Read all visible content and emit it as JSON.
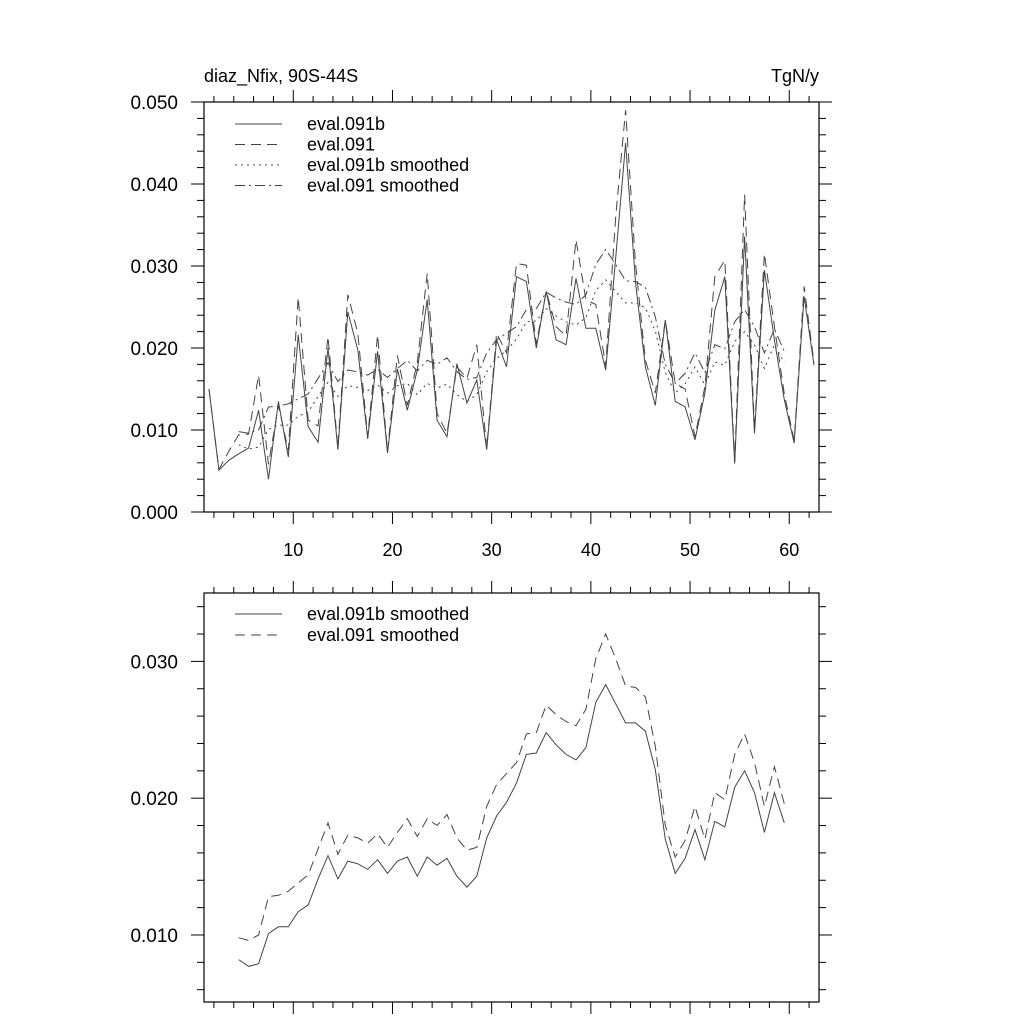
{
  "chart_data": [
    {
      "type": "line",
      "title_left": "diaz_Nfix, 90S-44S",
      "title_right": "TgN/y",
      "xlabel": "",
      "ylabel": "",
      "xlim": [
        1,
        63
      ],
      "ylim": [
        0.0,
        0.05
      ],
      "xticks": [
        10,
        20,
        30,
        40,
        50,
        60
      ],
      "xtick_labels": [
        "10",
        "20",
        "30",
        "40",
        "50",
        "60"
      ],
      "yticks": [
        0.0,
        0.01,
        0.02,
        0.03,
        0.04,
        0.05
      ],
      "ytick_labels": [
        "0.000",
        "0.010",
        "0.020",
        "0.030",
        "0.040",
        "0.050"
      ],
      "grid": false,
      "legend_position": "top-left",
      "series": [
        {
          "name": "eval.091b",
          "style": "solid",
          "x_start": 1.5,
          "values": [
            0.015,
            0.0051,
            0.0063,
            0.0071,
            0.0078,
            0.0124,
            0.004,
            0.0135,
            0.0067,
            0.0216,
            0.0104,
            0.0085,
            0.02,
            0.0076,
            0.0244,
            0.0198,
            0.0089,
            0.0196,
            0.0072,
            0.0174,
            0.0124,
            0.0173,
            0.0259,
            0.0112,
            0.0092,
            0.0181,
            0.0133,
            0.0161,
            0.0076,
            0.021,
            0.0177,
            0.0287,
            0.0281,
            0.02,
            0.0269,
            0.021,
            0.0204,
            0.0285,
            0.0224,
            0.0224,
            0.0173,
            0.031,
            0.045,
            0.028,
            0.0177,
            0.013,
            0.0234,
            0.0135,
            0.0128,
            0.0088,
            0.0145,
            0.0246,
            0.0287,
            0.0059,
            0.0336,
            0.0096,
            0.0295,
            0.021,
            0.0137,
            0.0084,
            0.0263,
            0.0179
          ]
        },
        {
          "name": "eval.091",
          "style": "dashed",
          "x_start": 1.5,
          "values": [
            0.015,
            0.0052,
            0.0074,
            0.0094,
            0.0095,
            0.0167,
            0.0058,
            0.013,
            0.0075,
            0.0262,
            0.0112,
            0.0105,
            0.0214,
            0.0078,
            0.0265,
            0.0218,
            0.0092,
            0.0216,
            0.0074,
            0.0191,
            0.013,
            0.0182,
            0.0291,
            0.012,
            0.0096,
            0.0177,
            0.0163,
            0.0204,
            0.0078,
            0.0218,
            0.0194,
            0.0303,
            0.0301,
            0.0205,
            0.0269,
            0.0226,
            0.0215,
            0.0332,
            0.0259,
            0.0253,
            0.0178,
            0.036,
            0.049,
            0.0303,
            0.0185,
            0.0145,
            0.0234,
            0.0157,
            0.015,
            0.0092,
            0.0153,
            0.0287,
            0.0307,
            0.0062,
            0.0387,
            0.01,
            0.0315,
            0.0226,
            0.0144,
            0.0087,
            0.0275,
            0.0182
          ]
        },
        {
          "name": "eval.091b smoothed",
          "style": "dotted",
          "x_start": 4.5,
          "values": [
            0.0082,
            0.0077,
            0.0079,
            0.0101,
            0.0106,
            0.0106,
            0.0117,
            0.0122,
            0.0141,
            0.0158,
            0.0141,
            0.0154,
            0.0152,
            0.0148,
            0.0155,
            0.0145,
            0.0154,
            0.0157,
            0.0143,
            0.0157,
            0.0151,
            0.0156,
            0.0143,
            0.0135,
            0.0143,
            0.0171,
            0.0187,
            0.0197,
            0.0211,
            0.0232,
            0.0233,
            0.0248,
            0.0239,
            0.0232,
            0.0228,
            0.0237,
            0.027,
            0.0283,
            0.0269,
            0.0255,
            0.0255,
            0.0249,
            0.0221,
            0.017,
            0.0145,
            0.0156,
            0.0177,
            0.0155,
            0.0183,
            0.0179,
            0.0208,
            0.022,
            0.0204,
            0.0175,
            0.0204,
            0.0182
          ]
        },
        {
          "name": "eval.091 smoothed",
          "style": "dashdot",
          "x_start": 4.5,
          "values": [
            0.0098,
            0.0096,
            0.01,
            0.0128,
            0.0129,
            0.0132,
            0.0138,
            0.0144,
            0.0163,
            0.0182,
            0.0159,
            0.0173,
            0.0171,
            0.0167,
            0.0174,
            0.0164,
            0.0175,
            0.0185,
            0.0172,
            0.0185,
            0.018,
            0.0188,
            0.0171,
            0.0162,
            0.0164,
            0.0194,
            0.021,
            0.0218,
            0.0226,
            0.0247,
            0.0248,
            0.0268,
            0.0261,
            0.0256,
            0.0253,
            0.0265,
            0.0302,
            0.032,
            0.0302,
            0.0282,
            0.0281,
            0.0274,
            0.0238,
            0.018,
            0.0157,
            0.0169,
            0.0194,
            0.017,
            0.0204,
            0.0199,
            0.0232,
            0.0247,
            0.0226,
            0.0194,
            0.0223,
            0.0196
          ]
        }
      ]
    },
    {
      "type": "line",
      "xlabel": "",
      "ylabel": "",
      "xlim": [
        1,
        63
      ],
      "ylim": [
        0.0051,
        0.035
      ],
      "xticks": [
        10,
        20,
        30,
        40,
        50,
        60
      ],
      "xtick_labels": [],
      "yticks": [
        0.01,
        0.02,
        0.03
      ],
      "ytick_labels": [
        "0.010",
        "0.020",
        "0.030"
      ],
      "grid": false,
      "legend_position": "top-left",
      "series": [
        {
          "name": "eval.091b smoothed",
          "style": "solid",
          "x_start": 4.5,
          "values": [
            0.0082,
            0.0077,
            0.0079,
            0.0101,
            0.0106,
            0.0106,
            0.0117,
            0.0122,
            0.0141,
            0.0158,
            0.0141,
            0.0154,
            0.0152,
            0.0148,
            0.0155,
            0.0145,
            0.0154,
            0.0157,
            0.0143,
            0.0157,
            0.0151,
            0.0156,
            0.0143,
            0.0135,
            0.0143,
            0.0171,
            0.0187,
            0.0197,
            0.0211,
            0.0232,
            0.0233,
            0.0248,
            0.0239,
            0.0232,
            0.0228,
            0.0237,
            0.027,
            0.0283,
            0.0269,
            0.0255,
            0.0255,
            0.0249,
            0.0221,
            0.017,
            0.0145,
            0.0156,
            0.0177,
            0.0155,
            0.0183,
            0.0179,
            0.0208,
            0.022,
            0.0204,
            0.0175,
            0.0204,
            0.0182
          ]
        },
        {
          "name": "eval.091 smoothed",
          "style": "dashed",
          "x_start": 4.5,
          "values": [
            0.0098,
            0.0096,
            0.01,
            0.0128,
            0.0129,
            0.0132,
            0.0138,
            0.0144,
            0.0163,
            0.0182,
            0.0159,
            0.0173,
            0.0171,
            0.0167,
            0.0174,
            0.0164,
            0.0175,
            0.0185,
            0.0172,
            0.0185,
            0.018,
            0.0188,
            0.0171,
            0.0162,
            0.0164,
            0.0194,
            0.021,
            0.0218,
            0.0226,
            0.0247,
            0.0248,
            0.0268,
            0.0261,
            0.0256,
            0.0253,
            0.0265,
            0.0302,
            0.032,
            0.0302,
            0.0282,
            0.0281,
            0.0274,
            0.0238,
            0.018,
            0.0157,
            0.0169,
            0.0194,
            0.017,
            0.0204,
            0.0199,
            0.0232,
            0.0247,
            0.0226,
            0.0194,
            0.0223,
            0.0196
          ]
        }
      ]
    }
  ]
}
